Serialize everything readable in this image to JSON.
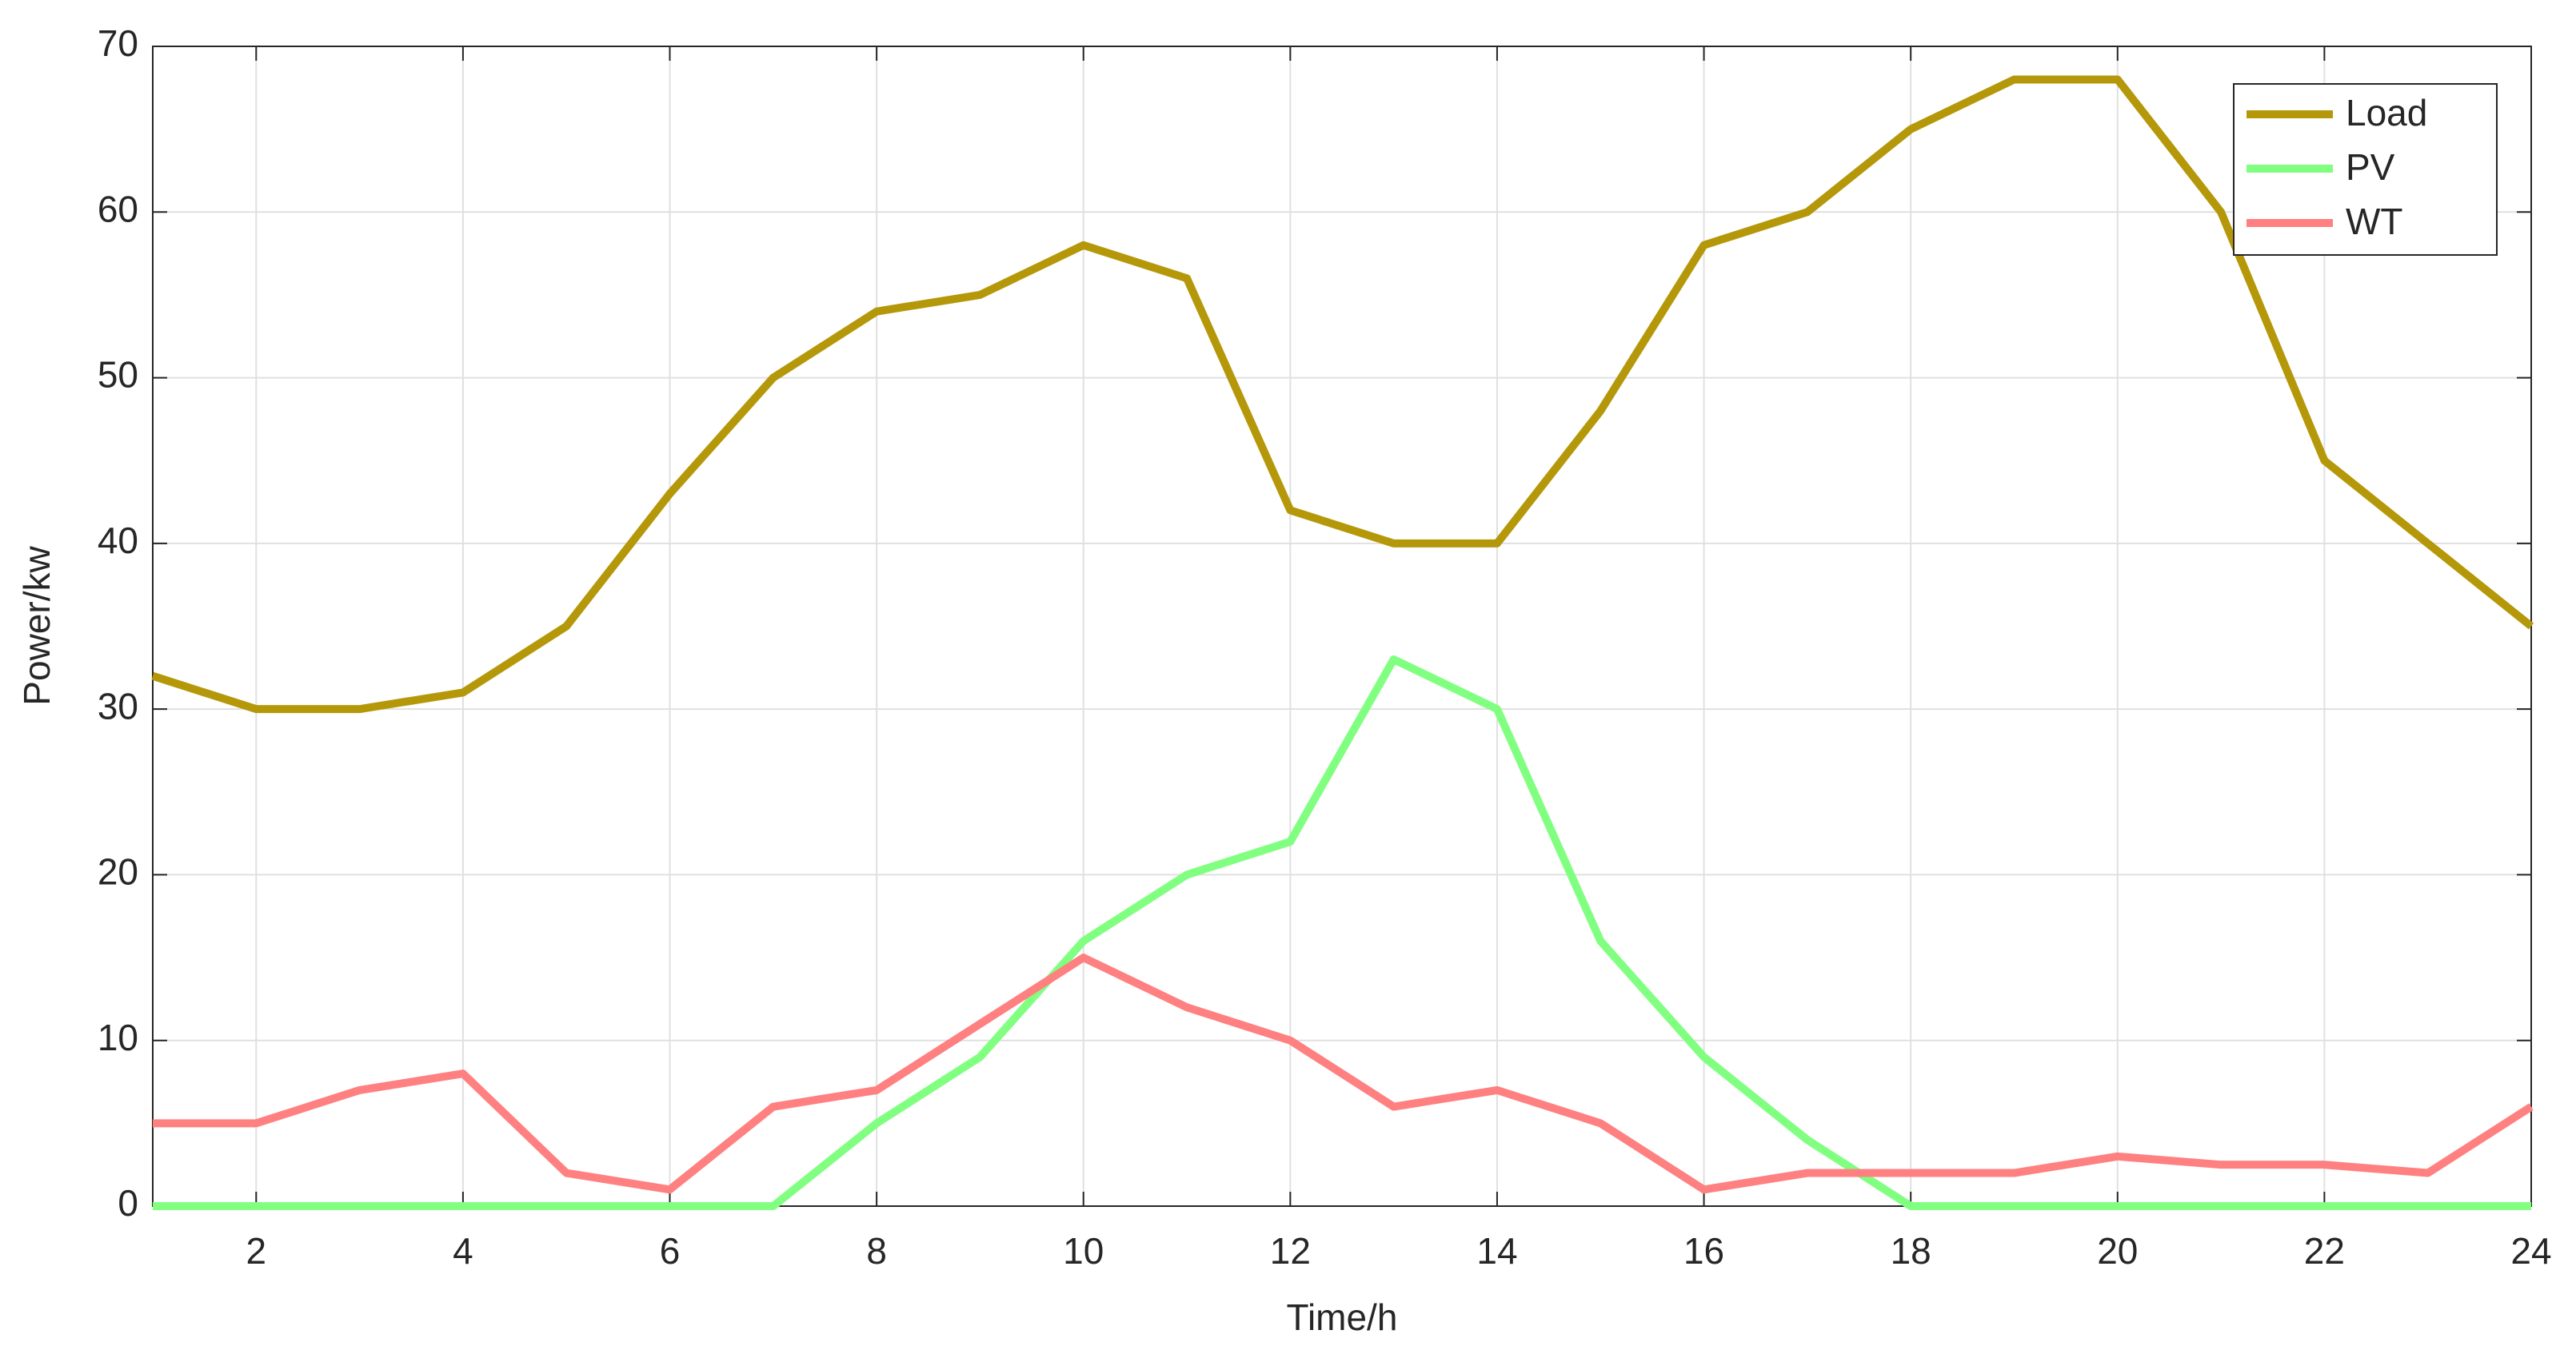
{
  "chart_data": {
    "type": "line",
    "xlabel": "Time/h",
    "ylabel": "Power/kw",
    "x": [
      1,
      2,
      3,
      4,
      5,
      6,
      7,
      8,
      9,
      10,
      11,
      12,
      13,
      14,
      15,
      16,
      17,
      18,
      19,
      20,
      21,
      22,
      23,
      24
    ],
    "series": [
      {
        "name": "Load",
        "color": "#b5980a",
        "values": [
          32,
          30,
          30,
          31,
          35,
          43,
          50,
          54,
          55,
          58,
          56,
          42,
          40,
          40,
          48,
          58,
          60,
          65,
          68,
          68,
          60,
          45,
          40,
          35
        ]
      },
      {
        "name": "PV",
        "color": "#80ff80",
        "values": [
          0,
          0,
          0,
          0,
          0,
          0,
          0,
          5,
          9,
          16,
          20,
          22,
          33,
          30,
          16,
          9,
          4,
          0,
          0,
          0,
          0,
          0,
          0,
          0
        ]
      },
      {
        "name": "WT",
        "color": "#ff8080",
        "values": [
          5,
          5,
          7,
          8,
          2,
          1,
          6,
          7,
          11,
          15,
          12,
          10,
          6,
          7,
          5,
          1,
          2,
          2,
          2,
          3,
          2.5,
          2.5,
          2,
          6
        ]
      }
    ],
    "xlim": [
      1,
      24
    ],
    "xticks": [
      2,
      4,
      6,
      8,
      10,
      12,
      14,
      16,
      18,
      20,
      22,
      24
    ],
    "ylim": [
      0,
      70
    ],
    "yticks": [
      0,
      10,
      20,
      30,
      40,
      50,
      60,
      70
    ],
    "grid": true,
    "legend": "top-right"
  }
}
